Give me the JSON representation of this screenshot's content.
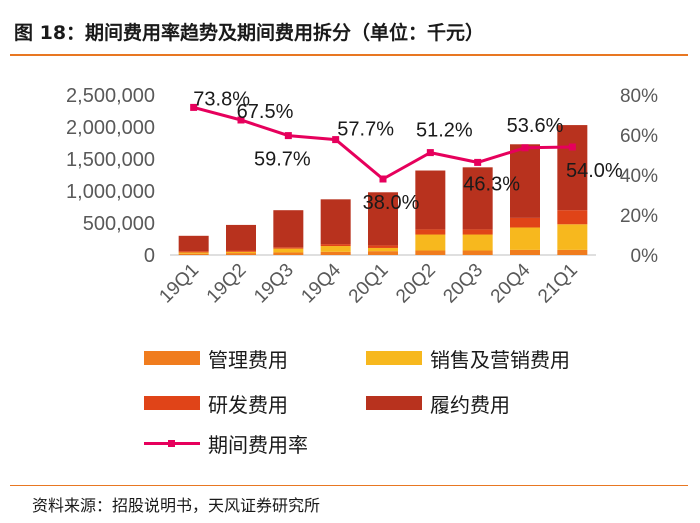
{
  "header": {
    "title": "图 18：期间费用率趋势及期间费用拆分（单位：千元）"
  },
  "footer": {
    "source": "资料来源：招股说明书，天风证券研究所"
  },
  "legend": [
    {
      "label": "管理费用",
      "color": "#F07C1E",
      "kind": "bar"
    },
    {
      "label": "销售及营销费用",
      "color": "#F7B81E",
      "kind": "bar"
    },
    {
      "label": "研发费用",
      "color": "#E04418",
      "kind": "bar"
    },
    {
      "label": "履约费用",
      "color": "#B8321E",
      "kind": "bar"
    },
    {
      "label": "期间费用率",
      "color": "#E6005C",
      "kind": "line"
    }
  ],
  "chart_data": {
    "type": "bar",
    "stacked": true,
    "categories": [
      "19Q1",
      "19Q2",
      "19Q3",
      "19Q4",
      "20Q1",
      "20Q2",
      "20Q3",
      "20Q4",
      "21Q1"
    ],
    "series": [
      {
        "name": "管理费用",
        "color": "#F07C1E",
        "axis": "left",
        "values": [
          20000,
          30000,
          40000,
          50000,
          60000,
          70000,
          70000,
          80000,
          80000
        ]
      },
      {
        "name": "销售及营销费用",
        "color": "#F7B81E",
        "axis": "left",
        "values": [
          20000,
          20000,
          60000,
          90000,
          50000,
          250000,
          250000,
          350000,
          400000
        ]
      },
      {
        "name": "研发费用",
        "color": "#E04418",
        "axis": "left",
        "values": [
          20000,
          20000,
          20000,
          30000,
          40000,
          80000,
          80000,
          150000,
          220000
        ]
      },
      {
        "name": "履约费用",
        "color": "#B8321E",
        "axis": "left",
        "values": [
          240000,
          400000,
          580000,
          700000,
          830000,
          920000,
          970000,
          1150000,
          1330000
        ]
      },
      {
        "name": "期间费用率",
        "color": "#E6005C",
        "axis": "right",
        "type": "line",
        "values": [
          73.8,
          67.5,
          59.7,
          57.7,
          38.0,
          51.2,
          46.3,
          53.6,
          54.0
        ],
        "labels": [
          "73.8%",
          "67.5%",
          "59.7%",
          "57.7%",
          "38.0%",
          "51.2%",
          "46.3%",
          "53.6%",
          "54.0%"
        ]
      }
    ],
    "y_left": {
      "ylim": [
        0,
        2500000
      ],
      "ticks": [
        0,
        500000,
        1000000,
        1500000,
        2000000,
        2500000
      ],
      "tick_labels": [
        "0",
        "500,000",
        "1,000,000",
        "1,500,000",
        "2,000,000",
        "2,500,000"
      ]
    },
    "y_right": {
      "ylim": [
        0,
        80
      ],
      "ticks": [
        0,
        20,
        40,
        60,
        80
      ],
      "tick_labels": [
        "0%",
        "20%",
        "40%",
        "60%",
        "80%"
      ]
    },
    "grid": false,
    "legend_position": "bottom"
  }
}
